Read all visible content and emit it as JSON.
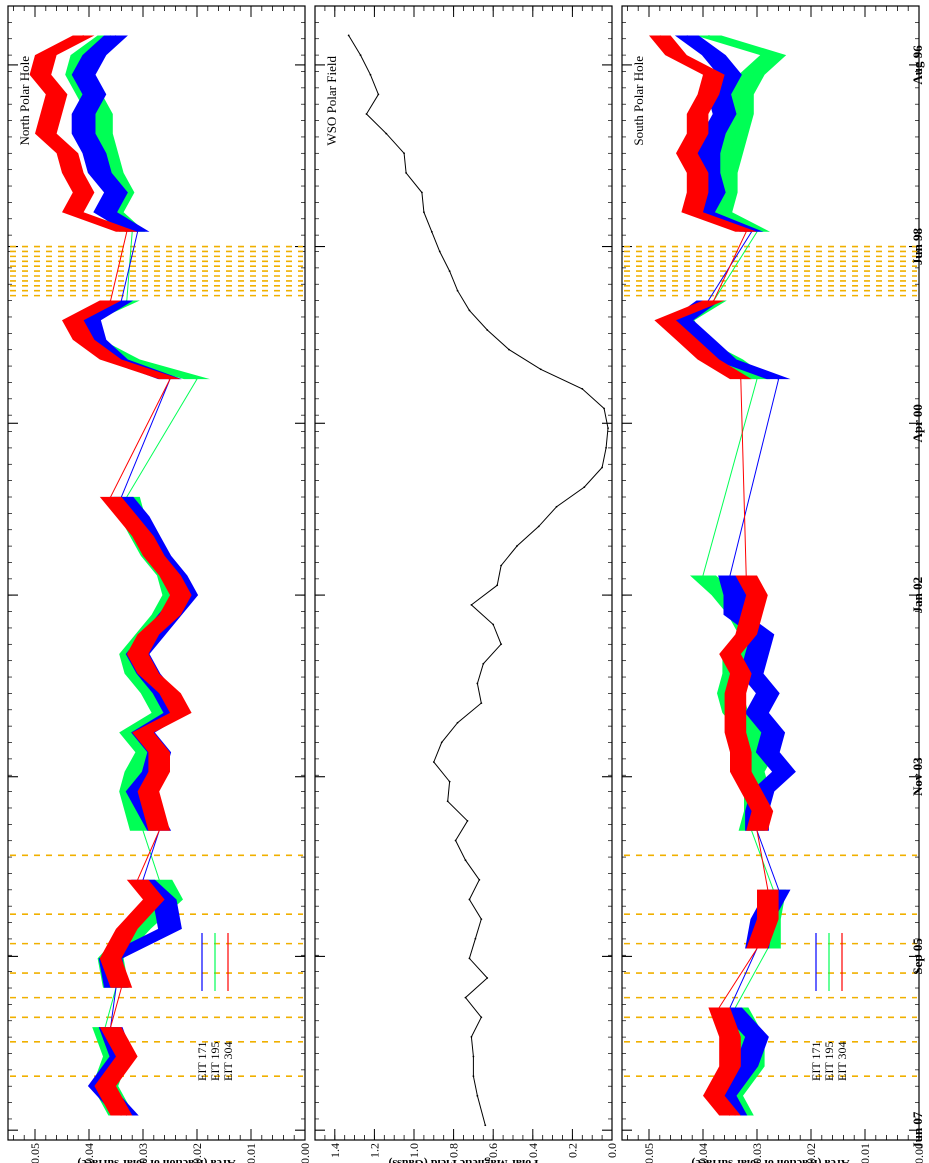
{
  "colors": {
    "eit171": "#0000ff",
    "eit195": "#00ff55",
    "eit304": "#ff0000",
    "gap": "#f0b000",
    "axis": "#000000"
  },
  "shared_time_axis": {
    "ticks": [
      "Aug 96",
      "Jun 98",
      "Apr 00",
      "Jan 02",
      "Nov 03",
      "Sep 05",
      "Jun 07"
    ]
  },
  "chart_data": [
    {
      "type": "area",
      "title": "North Polar Hole",
      "ylabel": "Area (fraction of solar surface)",
      "ylim": [
        0,
        0.055
      ],
      "yticks": [
        "0.05",
        "0.04",
        "0.03",
        "0.02",
        "0.01",
        "0.00"
      ],
      "legend": [
        "EIT 171",
        "EIT 195",
        "EIT 304"
      ],
      "gaps": [
        "1998.45",
        "1998.5",
        "1998.55",
        "1998.6",
        "1998.65",
        "1998.7",
        "1998.75",
        "1998.8",
        "1998.85",
        "1998.9",
        "1998.95",
        "2004.65",
        "2005.25",
        "2005.55",
        "2005.85",
        "2006.1",
        "2006.3",
        "2006.55",
        "2006.9"
      ],
      "x": [
        1996.3,
        1996.5,
        1996.7,
        1996.9,
        1997.1,
        1997.3,
        1997.5,
        1997.7,
        1997.9,
        1998.1,
        1998.3,
        1999.0,
        1999.2,
        1999.4,
        1999.6,
        1999.8,
        2001.0,
        2001.2,
        2001.4,
        2001.6,
        2001.8,
        2002.0,
        2002.2,
        2002.4,
        2002.6,
        2002.8,
        2003.0,
        2003.2,
        2003.4,
        2003.6,
        2003.8,
        2004.0,
        2004.2,
        2004.4,
        2004.9,
        2005.1,
        2005.4,
        2005.7,
        2006.0,
        2006.4,
        2006.7,
        2007.0,
        2007.3
      ],
      "series": [
        {
          "name": "EIT 171",
          "values": [
            0.035,
            0.039,
            0.041,
            0.039,
            0.041,
            0.041,
            0.039,
            0.038,
            0.035,
            0.037,
            0.031,
            0.034,
            0.04,
            0.039,
            0.035,
            0.025,
            0.034,
            0.031,
            0.029,
            0.027,
            0.024,
            0.022,
            0.025,
            0.028,
            0.031,
            0.029,
            0.026,
            0.024,
            0.03,
            0.027,
            0.028,
            0.031,
            0.029,
            0.027,
            0.03,
            0.026,
            0.025,
            0.036,
            0.035,
            0.036,
            0.034,
            0.038,
            0.033
          ]
        },
        {
          "name": "EIT 195",
          "values": [
            0.036,
            0.041,
            0.042,
            0.04,
            0.038,
            0.038,
            0.037,
            0.036,
            0.034,
            0.036,
            0.032,
            0.033,
            0.041,
            0.04,
            0.033,
            0.02,
            0.033,
            0.032,
            0.03,
            0.028,
            0.025,
            0.024,
            0.026,
            0.029,
            0.032,
            0.031,
            0.028,
            0.026,
            0.032,
            0.029,
            0.031,
            0.032,
            0.031,
            0.03,
            0.027,
            0.025,
            0.031,
            0.036,
            0.035,
            0.037,
            0.035,
            0.037,
            0.034
          ]
        },
        {
          "name": "EIT 304",
          "values": [
            0.041,
            0.048,
            0.049,
            0.046,
            0.047,
            0.048,
            0.044,
            0.043,
            0.041,
            0.043,
            0.033,
            0.036,
            0.043,
            0.041,
            0.036,
            0.025,
            0.036,
            0.033,
            0.03,
            0.028,
            0.025,
            0.023,
            0.025,
            0.029,
            0.031,
            0.029,
            0.025,
            0.023,
            0.03,
            0.027,
            0.027,
            0.029,
            0.028,
            0.027,
            0.031,
            0.028,
            0.033,
            0.036,
            0.034,
            0.036,
            0.033,
            0.037,
            0.034
          ]
        }
      ]
    },
    {
      "type": "line",
      "title": "WSO Polar Field",
      "ylabel": "Polar Magnetic Field (Gauss)",
      "ylim": [
        0,
        1.5
      ],
      "yticks": [
        "1.4",
        "1.2",
        "1.0",
        "0.8",
        "0.6",
        "0.4",
        "0.2",
        "0.0"
      ],
      "x": [
        1996.3,
        1996.5,
        1996.7,
        1996.9,
        1997.1,
        1997.3,
        1997.5,
        1997.7,
        1997.9,
        1998.1,
        1998.3,
        1998.5,
        1998.7,
        1998.9,
        1999.1,
        1999.3,
        1999.5,
        1999.7,
        1999.9,
        2000.1,
        2000.3,
        2000.5,
        2000.7,
        2000.9,
        2001.1,
        2001.3,
        2001.5,
        2001.7,
        2001.9,
        2002.1,
        2002.3,
        2002.5,
        2002.7,
        2002.9,
        2003.1,
        2003.3,
        2003.5,
        2003.7,
        2003.9,
        2004.1,
        2004.3,
        2004.5,
        2004.7,
        2004.9,
        2005.1,
        2005.3,
        2005.5,
        2005.7,
        2005.9,
        2006.1,
        2006.3,
        2006.5,
        2006.7,
        2006.9,
        2007.1,
        2007.4
      ],
      "series": [
        {
          "name": "",
          "values": [
            1.33,
            1.27,
            1.22,
            1.18,
            1.24,
            1.14,
            1.05,
            1.04,
            0.96,
            0.95,
            0.91,
            0.87,
            0.82,
            0.78,
            0.72,
            0.63,
            0.52,
            0.36,
            0.15,
            0.04,
            0.02,
            0.03,
            0.05,
            0.14,
            0.28,
            0.37,
            0.48,
            0.56,
            0.58,
            0.71,
            0.6,
            0.56,
            0.65,
            0.68,
            0.66,
            0.78,
            0.86,
            0.9,
            0.82,
            0.83,
            0.73,
            0.79,
            0.74,
            0.67,
            0.72,
            0.66,
            0.69,
            0.72,
            0.63,
            0.74,
            0.66,
            0.71,
            0.7,
            0.7,
            0.68,
            0.64
          ]
        }
      ]
    },
    {
      "type": "area",
      "title": "South Polar Hole",
      "ylabel": "Area (fraction of solar surface)",
      "ylim": [
        0,
        0.055
      ],
      "yticks": [
        "0.05",
        "0.04",
        "0.03",
        "0.02",
        "0.01",
        "0.00"
      ],
      "legend": [
        "EIT 171",
        "EIT 195",
        "EIT 304"
      ],
      "gaps": [
        "1998.45",
        "1998.5",
        "1998.55",
        "1998.6",
        "1998.65",
        "1998.7",
        "1998.75",
        "1998.8",
        "1998.85",
        "1998.9",
        "1998.95",
        "2004.65",
        "2005.25",
        "2005.55",
        "2005.85",
        "2006.1",
        "2006.3",
        "2006.55",
        "2006.9"
      ],
      "x": [
        1996.3,
        1996.5,
        1996.7,
        1996.9,
        1997.1,
        1997.3,
        1997.5,
        1997.7,
        1997.9,
        1998.1,
        1998.3,
        1999.0,
        1999.2,
        1999.4,
        1999.6,
        1999.8,
        2001.8,
        2002.0,
        2002.2,
        2002.4,
        2002.6,
        2002.8,
        2003.0,
        2003.2,
        2003.4,
        2003.6,
        2003.8,
        2004.0,
        2004.2,
        2004.4,
        2005.0,
        2005.3,
        2005.6,
        2006.2,
        2006.5,
        2006.8,
        2007.1,
        2007.3
      ],
      "series": [
        {
          "name": "EIT 171",
          "values": [
            0.043,
            0.038,
            0.035,
            0.037,
            0.036,
            0.038,
            0.039,
            0.039,
            0.038,
            0.04,
            0.031,
            0.039,
            0.044,
            0.04,
            0.036,
            0.026,
            0.035,
            0.034,
            0.034,
            0.029,
            0.03,
            0.031,
            0.028,
            0.03,
            0.027,
            0.028,
            0.025,
            0.029,
            0.03,
            0.03,
            0.026,
            0.029,
            0.03,
            0.035,
            0.03,
            0.032,
            0.036,
            0.034
          ]
        },
        {
          "name": "EIT 195",
          "values": [
            0.039,
            0.027,
            0.031,
            0.033,
            0.033,
            0.034,
            0.035,
            0.036,
            0.036,
            0.037,
            0.03,
            0.038,
            0.044,
            0.042,
            0.035,
            0.03,
            0.04,
            0.036,
            0.033,
            0.031,
            0.034,
            0.034,
            0.035,
            0.034,
            0.031,
            0.029,
            0.031,
            0.03,
            0.03,
            0.031,
            0.027,
            0.028,
            0.028,
            0.034,
            0.031,
            0.031,
            0.035,
            0.033
          ]
        },
        {
          "name": "EIT 304",
          "values": [
            0.048,
            0.045,
            0.038,
            0.039,
            0.041,
            0.041,
            0.043,
            0.041,
            0.041,
            0.042,
            0.032,
            0.038,
            0.047,
            0.043,
            0.039,
            0.033,
            0.032,
            0.03,
            0.031,
            0.032,
            0.035,
            0.033,
            0.034,
            0.034,
            0.034,
            0.033,
            0.033,
            0.031,
            0.029,
            0.03,
            0.028,
            0.028,
            0.03,
            0.037,
            0.035,
            0.035,
            0.038,
            0.035
          ]
        }
      ]
    }
  ]
}
